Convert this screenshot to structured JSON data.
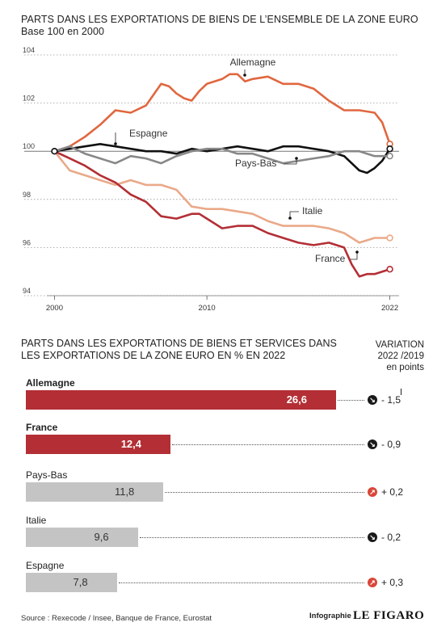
{
  "chart_data": [
    {
      "type": "line",
      "title": "PARTS DANS LES EXPORTATIONS DE BIENS DE L’ENSEMBLE DE LA ZONE EURO",
      "subtitle": "Base 100 en 2000",
      "ylim": [
        94,
        104
      ],
      "yticks": [
        "94",
        "96",
        "98",
        "100",
        "102",
        "104"
      ],
      "xlim": [
        1999.5,
        2022.5
      ],
      "xticks": [
        "2000",
        "2010",
        "2022"
      ],
      "grid": true,
      "series": [
        {
          "name": "Allemagne",
          "color": "#e0673f",
          "x": [
            2000,
            2001,
            2002,
            2003,
            2004,
            2005,
            2006,
            2007,
            2007.5,
            2008,
            2008.5,
            2009,
            2009.5,
            2010,
            2010.5,
            2011,
            2011.5,
            2012,
            2012.5,
            2013,
            2014,
            2015,
            2016,
            2017,
            2018,
            2019,
            2020,
            2021,
            2021.5,
            2022
          ],
          "y": [
            100,
            100.2,
            100.6,
            101.1,
            101.7,
            101.6,
            101.9,
            102.8,
            102.7,
            102.4,
            102.2,
            102.1,
            102.5,
            102.8,
            102.9,
            103.0,
            103.2,
            103.2,
            102.9,
            103.0,
            103.1,
            102.8,
            102.8,
            102.6,
            102.1,
            101.7,
            101.7,
            101.6,
            101.2,
            100.3
          ]
        },
        {
          "name": "Espagne",
          "color": "#111111",
          "x": [
            2000,
            2001,
            2002,
            2003,
            2004,
            2005,
            2006,
            2007,
            2008,
            2009,
            2010,
            2011,
            2012,
            2013,
            2014,
            2015,
            2016,
            2017,
            2018,
            2019,
            2020,
            2020.5,
            2021,
            2021.5,
            2022
          ],
          "y": [
            100,
            100.1,
            100.2,
            100.3,
            100.2,
            100.1,
            100.0,
            100.0,
            99.9,
            100.1,
            100.0,
            100.1,
            100.2,
            100.1,
            100.0,
            100.2,
            100.2,
            100.1,
            100.0,
            99.8,
            99.2,
            99.1,
            99.3,
            99.6,
            100.1
          ]
        },
        {
          "name": "Pays-Bas",
          "color": "#888888",
          "x": [
            2000,
            2001,
            2002,
            2003,
            2004,
            2005,
            2006,
            2007,
            2008,
            2009,
            2010,
            2011,
            2012,
            2013,
            2014,
            2015,
            2016,
            2017,
            2018,
            2019,
            2020,
            2021,
            2022
          ],
          "y": [
            100,
            100.2,
            99.9,
            99.7,
            99.5,
            99.8,
            99.7,
            99.5,
            99.8,
            100.0,
            100.1,
            100.1,
            99.9,
            99.9,
            99.7,
            99.5,
            99.6,
            99.7,
            99.8,
            100.0,
            100.0,
            99.8,
            99.8
          ]
        },
        {
          "name": "Italie",
          "color": "#eaa989",
          "x": [
            2000,
            2001,
            2002,
            2003,
            2004,
            2005,
            2006,
            2007,
            2008,
            2009,
            2010,
            2011,
            2012,
            2013,
            2014,
            2015,
            2016,
            2017,
            2018,
            2019,
            2020,
            2021,
            2022
          ],
          "y": [
            100,
            99.2,
            99.0,
            98.8,
            98.6,
            98.8,
            98.6,
            98.6,
            98.4,
            97.7,
            97.6,
            97.6,
            97.5,
            97.4,
            97.1,
            96.9,
            96.9,
            96.9,
            96.8,
            96.6,
            96.2,
            96.4,
            96.4
          ]
        },
        {
          "name": "France",
          "color": "#b32f35",
          "x": [
            2000,
            2001,
            2002,
            2003,
            2004,
            2005,
            2006,
            2007,
            2008,
            2009,
            2009.5,
            2010,
            2010.5,
            2011,
            2012,
            2013,
            2014,
            2015,
            2016,
            2017,
            2018,
            2019,
            2019.5,
            2020,
            2020.5,
            2021,
            2022
          ],
          "y": [
            100,
            99.7,
            99.4,
            99.0,
            98.7,
            98.2,
            97.9,
            97.3,
            97.2,
            97.4,
            97.4,
            97.2,
            97.0,
            96.8,
            96.9,
            96.9,
            96.6,
            96.4,
            96.2,
            96.1,
            96.2,
            96.0,
            95.3,
            94.8,
            94.9,
            94.9,
            95.1
          ]
        }
      ]
    },
    {
      "type": "bar",
      "title": "PARTS DANS LES EXPORTATIONS DE BIENS ET SERVICES DANS LES EXPORTATIONS DE LA ZONE EURO EN % EN 2022",
      "categories": [
        "Allemagne",
        "France",
        "Pays-Bas",
        "Italie",
        "Espagne"
      ],
      "values": [
        26.6,
        12.4,
        11.8,
        9.6,
        7.8
      ],
      "value_labels": [
        "26,6",
        "12,4",
        "11,8",
        "9,6",
        "7,8"
      ],
      "variation_title": [
        "VARIATION",
        "2022 /2019",
        "en points"
      ],
      "variations": [
        "- 1,5",
        "- 0,9",
        "+ 0,2",
        "- 0,2",
        "+ 0,3"
      ],
      "variation_direction": [
        "down",
        "down",
        "up",
        "down",
        "up"
      ],
      "bar_colors": [
        "#b32f35",
        "#b32f35",
        "#c4c4c4",
        "#c4c4c4",
        "#c4c4c4"
      ],
      "xlim": [
        0,
        30
      ]
    }
  ],
  "footer": {
    "source": "Source : Rexecode / Insee, Banque de France, Eurostat",
    "credit": "Infographie",
    "logo": "LE FIGARO"
  }
}
